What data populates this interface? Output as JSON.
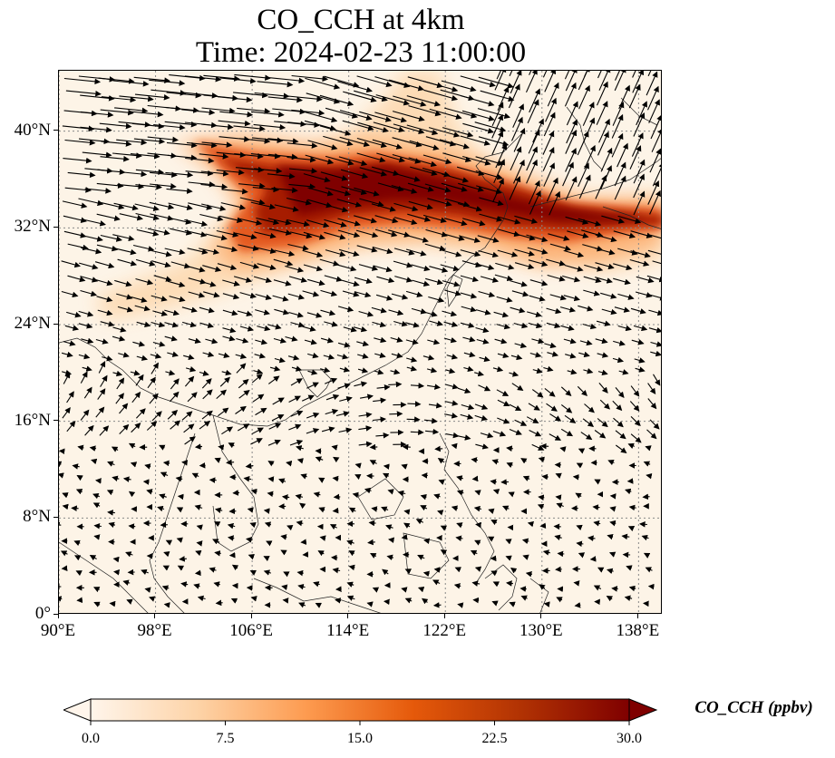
{
  "title": {
    "line1": "CO_CCH at 4km",
    "line2": "Time: 2024-02-23 11:00:00"
  },
  "map": {
    "lon_range": [
      90,
      140
    ],
    "lat_range": [
      0,
      45
    ],
    "lat_ticks": [
      {
        "value": 0,
        "label": "0°"
      },
      {
        "value": 8,
        "label": "8°N"
      },
      {
        "value": 16,
        "label": "16°N"
      },
      {
        "value": 24,
        "label": "24°N"
      },
      {
        "value": 32,
        "label": "32°N"
      },
      {
        "value": 40,
        "label": "40°N"
      }
    ],
    "lon_ticks": [
      {
        "value": 90,
        "label": "90°E"
      },
      {
        "value": 98,
        "label": "98°E"
      },
      {
        "value": 106,
        "label": "106°E"
      },
      {
        "value": 114,
        "label": "114°E"
      },
      {
        "value": 122,
        "label": "122°E"
      },
      {
        "value": 130,
        "label": "130°E"
      },
      {
        "value": 138,
        "label": "138°E"
      }
    ],
    "background_color": "#fdf4e7",
    "coastline_color": "#222222",
    "grid_color": "#888888"
  },
  "colorbar": {
    "label": "CO_CCH (ppbv)",
    "min": 0.0,
    "max": 30.0,
    "ticks": [
      "0.0",
      "7.5",
      "15.0",
      "22.5",
      "30.0"
    ],
    "extend": "both",
    "colors": [
      "#fff5eb",
      "#fdd3a7",
      "#fd9b50",
      "#e5590a",
      "#b13203",
      "#7f0000"
    ]
  }
}
